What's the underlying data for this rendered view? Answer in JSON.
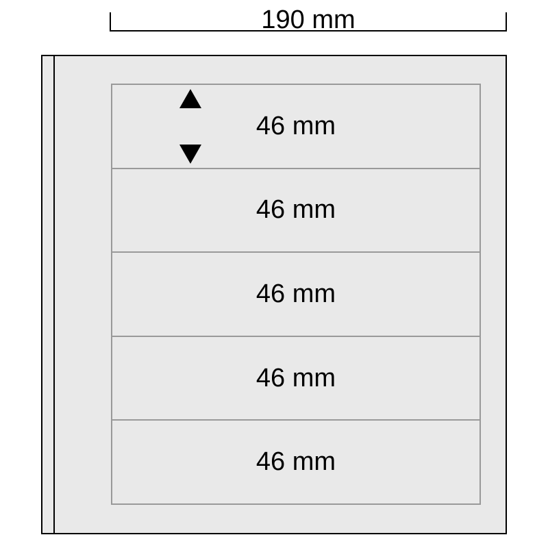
{
  "diagram": {
    "type": "dimensioned-layout",
    "background_color": "#ffffff",
    "page_background": "#e9e9e9",
    "outer_border_color": "#000000",
    "inner_border_color": "#999999",
    "text_color": "#000000",
    "font_family": "Arial",
    "label_fontsize_pt": 28,
    "width_dim": {
      "label": "190 mm",
      "value_mm": 190
    },
    "strips": [
      {
        "label": "46 mm",
        "height_mm": 46,
        "show_arrows": true
      },
      {
        "label": "46 mm",
        "height_mm": 46,
        "show_arrows": false
      },
      {
        "label": "46 mm",
        "height_mm": 46,
        "show_arrows": false
      },
      {
        "label": "46 mm",
        "height_mm": 46,
        "show_arrows": false
      },
      {
        "label": "46 mm",
        "height_mm": 46,
        "show_arrows": false
      }
    ],
    "arrow_color": "#000000"
  }
}
